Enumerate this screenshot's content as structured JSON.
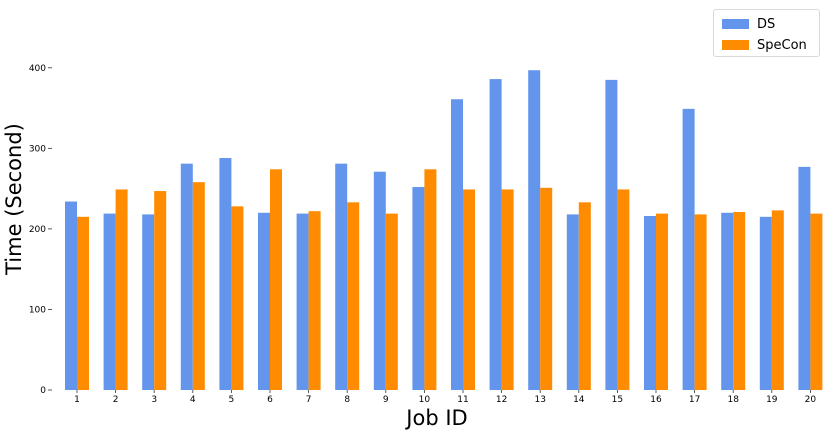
{
  "chart_data": {
    "type": "bar",
    "xlabel": "Job ID",
    "ylabel": "Time (Second)",
    "ylim": [
      0,
      450
    ],
    "yticks": [
      0,
      100,
      200,
      300,
      400
    ],
    "categories": [
      "1",
      "2",
      "3",
      "4",
      "5",
      "6",
      "7",
      "8",
      "9",
      "10",
      "11",
      "12",
      "13",
      "14",
      "15",
      "16",
      "17",
      "18",
      "19",
      "20"
    ],
    "series": [
      {
        "name": "DS",
        "color": "#6495ED",
        "values": [
          234,
          219,
          218,
          281,
          288,
          220,
          219,
          281,
          271,
          252,
          361,
          386,
          397,
          218,
          385,
          216,
          349,
          220,
          215,
          277
        ]
      },
      {
        "name": "SpeCon",
        "color": "#FF8C00",
        "values": [
          215,
          249,
          247,
          258,
          228,
          274,
          222,
          233,
          219,
          274,
          249,
          249,
          251,
          233,
          249,
          219,
          218,
          221,
          223,
          219
        ]
      }
    ],
    "legend_position": "top-right",
    "grid": false
  }
}
